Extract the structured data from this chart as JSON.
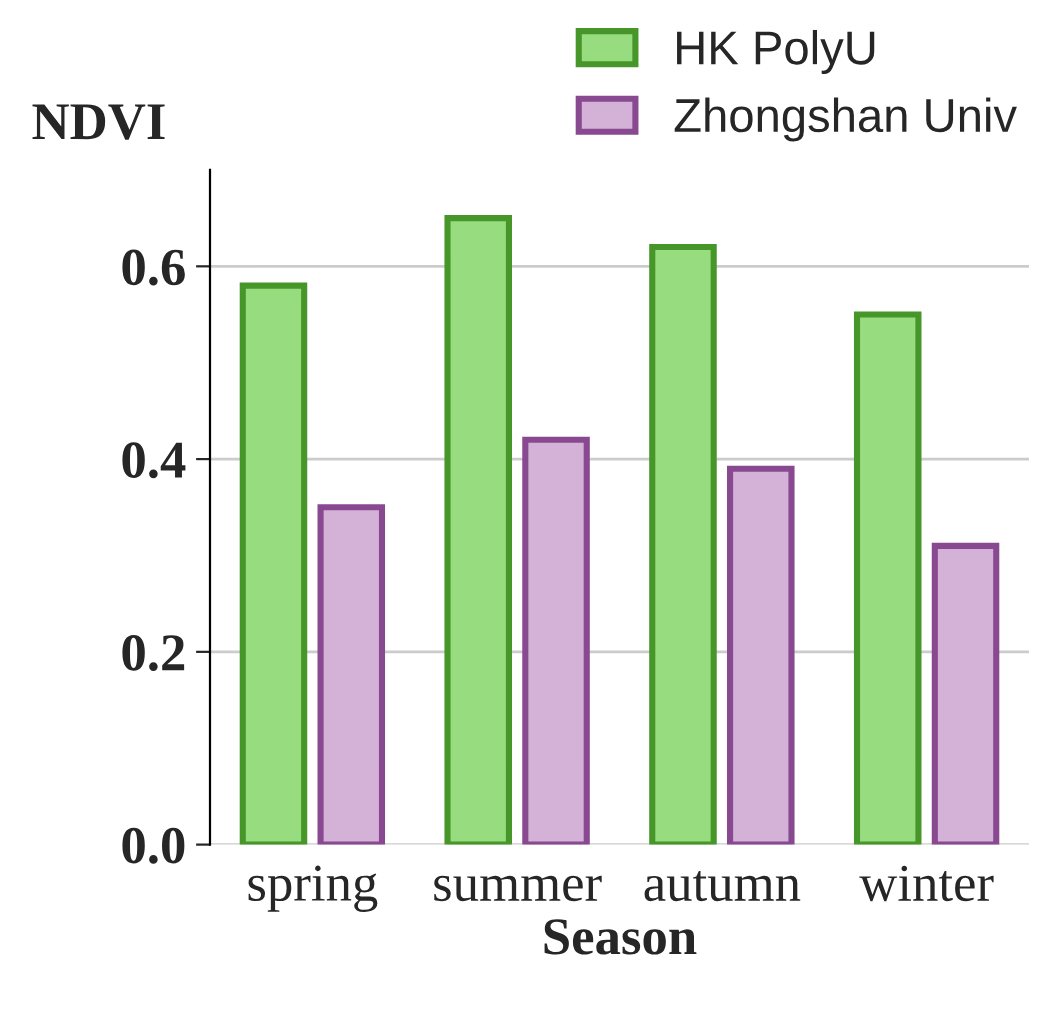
{
  "chart_data": {
    "type": "bar",
    "ylabel": "NDVI",
    "xlabel": "Season",
    "categories": [
      "spring",
      "summer",
      "autumn",
      "winter"
    ],
    "series": [
      {
        "name": "HK PolyU",
        "color": "#98dc80",
        "values": [
          0.58,
          0.65,
          0.62,
          0.55
        ]
      },
      {
        "name": "Zhongshan Univ",
        "color": "#d4b2d8",
        "values": [
          0.35,
          0.42,
          0.39,
          0.31
        ]
      }
    ],
    "ylim": [
      0,
      0.7
    ],
    "yticks": [
      {
        "value": 0,
        "label": "0.0"
      },
      0.2,
      0.4,
      0.6
    ],
    "grid": "y",
    "legend": "top right"
  }
}
